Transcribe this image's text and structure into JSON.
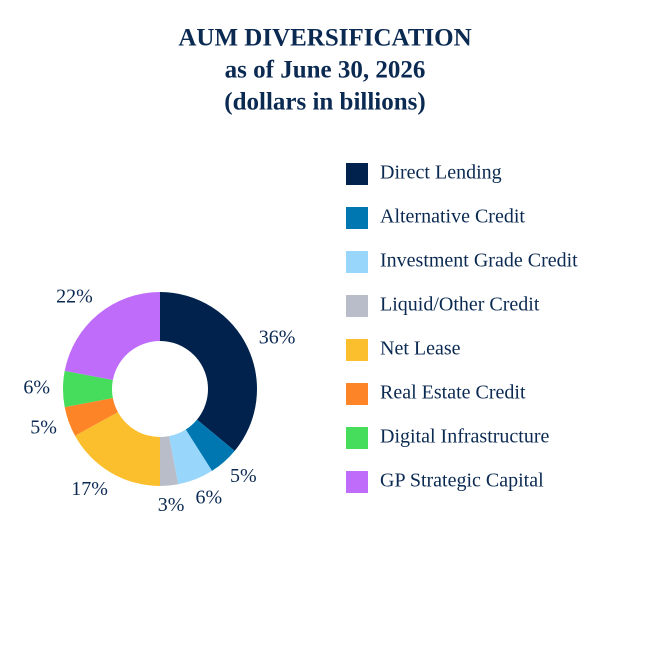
{
  "chart_data": {
    "type": "donut",
    "title": "AUM DIVERSIFICATION",
    "subtitle": [
      "as of June 30, 2026",
      "(dollars in billions)"
    ],
    "categories": [
      "Direct Lending",
      "Alternative Credit",
      "Investment Grade Credit",
      "Liquid/Other Credit",
      "Net Lease",
      "Real Estate Credit",
      "Digital Infrastructure",
      "GP Strategic Capital"
    ],
    "values": [
      36,
      5,
      6,
      3,
      17,
      5,
      6,
      22
    ],
    "value_labels": [
      "36%",
      "5%",
      "6%",
      "3%",
      "17%",
      "5%",
      "6%",
      "22%"
    ],
    "colors": [
      "#00224d",
      "#0077b0",
      "#99d6fb",
      "#b9bdc9",
      "#fbbf2e",
      "#fd8427",
      "#45dd5b",
      "#bf6cfb"
    ],
    "legend": "right"
  }
}
